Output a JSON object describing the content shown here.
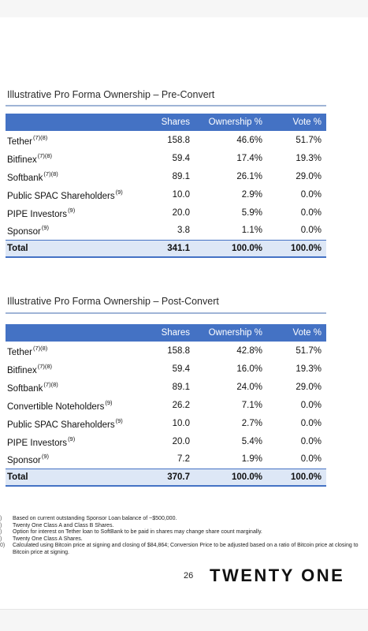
{
  "pre_convert": {
    "title": "Illustrative Pro Forma Ownership – Pre-Convert",
    "headers": {
      "name": "",
      "shares": "Shares",
      "ownership": "Ownership %",
      "vote": "Vote %"
    },
    "rows": [
      {
        "name": "Tether",
        "note": "(7)(8)",
        "shares": "158.8",
        "ownership": "46.6%",
        "vote": "51.7%"
      },
      {
        "name": "Bitfinex",
        "note": "(7)(8)",
        "shares": "59.4",
        "ownership": "17.4%",
        "vote": "19.3%"
      },
      {
        "name": "Softbank",
        "note": "(7)(8)",
        "shares": "89.1",
        "ownership": "26.1%",
        "vote": "29.0%"
      },
      {
        "name": "Public SPAC Shareholders",
        "note": "(9)",
        "shares": "10.0",
        "ownership": "2.9%",
        "vote": "0.0%"
      },
      {
        "name": "PIPE Investors",
        "note": "(9)",
        "shares": "20.0",
        "ownership": "5.9%",
        "vote": "0.0%"
      },
      {
        "name": "Sponsor",
        "note": "(9)",
        "shares": "3.8",
        "ownership": "1.1%",
        "vote": "0.0%"
      }
    ],
    "total": {
      "name": "Total",
      "shares": "341.1",
      "ownership": "100.0%",
      "vote": "100.0%"
    }
  },
  "post_convert": {
    "title": "Illustrative Pro Forma Ownership – Post-Convert",
    "headers": {
      "name": "",
      "shares": "Shares",
      "ownership": "Ownership %",
      "vote": "Vote %"
    },
    "rows": [
      {
        "name": "Tether",
        "note": "(7)(8)",
        "shares": "158.8",
        "ownership": "42.8%",
        "vote": "51.7%"
      },
      {
        "name": "Bitfinex",
        "note": "(7)(8)",
        "shares": "59.4",
        "ownership": "16.0%",
        "vote": "19.3%"
      },
      {
        "name": "Softbank",
        "note": "(7)(8)",
        "shares": "89.1",
        "ownership": "24.0%",
        "vote": "29.0%"
      },
      {
        "name": "Convertible Noteholders",
        "note": "(9)",
        "shares": "26.2",
        "ownership": "7.1%",
        "vote": "0.0%"
      },
      {
        "name": "Public SPAC Shareholders",
        "note": "(9)",
        "shares": "10.0",
        "ownership": "2.7%",
        "vote": "0.0%"
      },
      {
        "name": "PIPE Investors",
        "note": "(9)",
        "shares": "20.0",
        "ownership": "5.4%",
        "vote": "0.0%"
      },
      {
        "name": "Sponsor",
        "note": "(9)",
        "shares": "7.2",
        "ownership": "1.9%",
        "vote": "0.0%"
      }
    ],
    "total": {
      "name": "Total",
      "shares": "370.7",
      "ownership": "100.0%",
      "vote": "100.0%"
    }
  },
  "footnotes": [
    {
      "marker": ")",
      "text": "Based on current outstanding Sponsor Loan balance of ~$500,000."
    },
    {
      "marker": ")",
      "text": "Twenty One Class A and Class B Shares."
    },
    {
      "marker": ")",
      "text": "Option for interest on Tether loan to SoftBank to be paid in shares may change share count marginally."
    },
    {
      "marker": ")",
      "text": "Twenty One Class A Shares."
    },
    {
      "marker": "0)",
      "text": "Calculated using Bitcoin price at signing and closing of $84,864; Conversion Price to be adjusted based on a ratio of Bitcoin price at closing to Bitcoin price at signing."
    }
  ],
  "page_number": "26",
  "brand": "TWENTY ONE",
  "colors": {
    "header_blue": "#4472c4",
    "total_fill": "#dde7f6",
    "title_rule": "#9fb4d6"
  }
}
